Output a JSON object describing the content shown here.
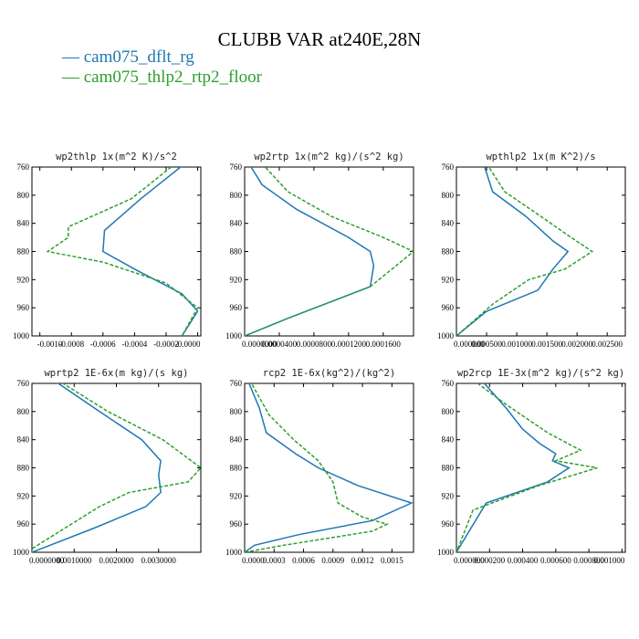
{
  "figure": {
    "title": "CLUBB VAR at240E,28N",
    "legend": [
      {
        "label": "cam075_dflt_rg",
        "color": "#1f77b4"
      },
      {
        "label": "cam075_thlp2_rtp2_floor",
        "color": "#2ca02c"
      }
    ]
  },
  "chart_data": [
    {
      "type": "line",
      "title": "wp2thlp  1x(m^2 K)/s^2",
      "ylim": [
        760,
        1000
      ],
      "y_inverted": true,
      "yticks": [
        760,
        800,
        840,
        880,
        920,
        960,
        1000
      ],
      "xlim": [
        -0.00105,
        2e-05
      ],
      "xticks": [
        -0.001,
        -0.0008,
        -0.0006,
        -0.0004,
        -0.0002,
        0.0
      ],
      "xtick_labels": [
        "-0.0010",
        "-0.0008",
        "-0.0006",
        "-0.0004",
        "-0.0002",
        "-0.0000"
      ],
      "grid": false,
      "series": [
        {
          "name": "cam075_dflt_rg",
          "color": "#1f77b4",
          "style": "solid",
          "x": [
            -8e-05,
            -0.00036,
            -0.00059,
            -0.0006,
            -0.0004,
            -0.0001,
            0.0,
            -0.0001
          ],
          "y": [
            755,
            805,
            850,
            880,
            905,
            940,
            965,
            1000
          ]
        },
        {
          "name": "cam075_thlp2_rtp2_floor",
          "color": "#2ca02c",
          "style": "dashed",
          "x": [
            -0.00014,
            -0.00042,
            -0.00082,
            -0.00082,
            -0.00095,
            -0.0006,
            -0.0002,
            0.0,
            -0.0001
          ],
          "y": [
            755,
            805,
            845,
            860,
            880,
            895,
            925,
            960,
            1000
          ]
        }
      ]
    },
    {
      "type": "line",
      "title": "wp2rtp  1x(m^2 kg)/(s^2 kg)",
      "ylim": [
        760,
        1000
      ],
      "y_inverted": true,
      "yticks": [
        760,
        800,
        840,
        880,
        920,
        960,
        1000
      ],
      "xlim": [
        0.0,
        0.000195
      ],
      "xticks": [
        0.0,
        4e-05,
        8e-05,
        0.00012,
        0.00016
      ],
      "xtick_labels": [
        "0.0000000",
        "0.0000400",
        "0.0000800",
        "0.0001200",
        "0.0001600"
      ],
      "grid": false,
      "series": [
        {
          "name": "cam075_dflt_rg",
          "color": "#1f77b4",
          "style": "solid",
          "x": [
            5e-06,
            2e-05,
            6e-05,
            0.00012,
            0.000145,
            0.000149,
            0.000145,
            5e-05,
            0.0
          ],
          "y": [
            755,
            785,
            820,
            860,
            880,
            900,
            930,
            975,
            1000
          ]
        },
        {
          "name": "cam075_thlp2_rtp2_floor",
          "color": "#2ca02c",
          "style": "dashed",
          "x": [
            2e-05,
            5e-05,
            0.0001,
            0.00016,
            0.000195,
            0.00017,
            0.000145,
            5e-05,
            0.0
          ],
          "y": [
            755,
            795,
            830,
            860,
            880,
            905,
            930,
            975,
            1000
          ]
        }
      ]
    },
    {
      "type": "line",
      "title": "wpthlp2  1x(m K^2)/s",
      "ylim": [
        760,
        1000
      ],
      "y_inverted": true,
      "yticks": [
        760,
        800,
        840,
        880,
        920,
        960,
        1000
      ],
      "xlim": [
        0.0,
        0.0028
      ],
      "xticks": [
        0.0,
        0.0005,
        0.001,
        0.0015,
        0.002,
        0.0025
      ],
      "xtick_labels": [
        "0.000000",
        "0.000500",
        "0.001000",
        "0.001500",
        "0.002000",
        "0.002500"
      ],
      "grid": false,
      "series": [
        {
          "name": "cam075_dflt_rg",
          "color": "#1f77b4",
          "style": "solid",
          "x": [
            0.00045,
            0.0006,
            0.00115,
            0.0016,
            0.00185,
            0.0016,
            0.00135,
            0.0005,
            0.0
          ],
          "y": [
            755,
            795,
            830,
            865,
            880,
            905,
            935,
            965,
            1000
          ]
        },
        {
          "name": "cam075_thlp2_rtp2_floor",
          "color": "#2ca02c",
          "style": "dashed",
          "x": [
            0.0005,
            0.0008,
            0.0014,
            0.0019,
            0.00225,
            0.0018,
            0.0012,
            0.0006,
            0.0
          ],
          "y": [
            755,
            795,
            830,
            860,
            880,
            905,
            920,
            955,
            1000
          ]
        }
      ]
    },
    {
      "type": "line",
      "title": "wprtp2  1E-6x(m kg)/(s kg)",
      "ylim": [
        760,
        1000
      ],
      "y_inverted": true,
      "yticks": [
        760,
        800,
        840,
        880,
        920,
        960,
        1000
      ],
      "xlim": [
        0.0,
        0.004
      ],
      "xticks": [
        0.0,
        0.001,
        0.002,
        0.003
      ],
      "xtick_labels": [
        "0.0000000",
        "0.0010000",
        "0.0020000",
        "0.0030000"
      ],
      "grid": false,
      "series": [
        {
          "name": "cam075_dflt_rg",
          "color": "#1f77b4",
          "style": "solid",
          "x": [
            0.0005,
            0.0016,
            0.0026,
            0.00305,
            0.003,
            0.00305,
            0.0027,
            0.0015,
            0.0
          ],
          "y": [
            755,
            800,
            840,
            870,
            890,
            915,
            935,
            965,
            1000
          ]
        },
        {
          "name": "cam075_thlp2_rtp2_floor",
          "color": "#2ca02c",
          "style": "dashed",
          "x": [
            0.0006,
            0.0018,
            0.0031,
            0.004,
            0.0037,
            0.0023,
            0.0016,
            0.0,
            0.0
          ],
          "y": [
            755,
            800,
            840,
            880,
            900,
            915,
            935,
            995,
            1000
          ]
        }
      ]
    },
    {
      "type": "line",
      "title": "rcp2  1E-6x(kg^2)/(kg^2)",
      "ylim": [
        760,
        1000
      ],
      "y_inverted": true,
      "yticks": [
        760,
        800,
        840,
        880,
        920,
        960,
        1000
      ],
      "xlim": [
        0.0,
        0.00172
      ],
      "xticks": [
        0.0,
        0.0003,
        0.0006,
        0.0009,
        0.0012,
        0.0015
      ],
      "xtick_labels": [
        "0.0000",
        "0.0003",
        "0.0006",
        "0.0009",
        "0.0012",
        "0.0015"
      ],
      "grid": false,
      "series": [
        {
          "name": "cam075_dflt_rg",
          "color": "#1f77b4",
          "style": "solid",
          "x": [
            3e-05,
            0.00015,
            0.00022,
            0.00052,
            0.00075,
            0.00115,
            0.0017,
            0.0013,
            0.00055,
            0.0001,
            0.0
          ],
          "y": [
            755,
            795,
            830,
            860,
            880,
            905,
            930,
            955,
            975,
            990,
            1000
          ]
        },
        {
          "name": "cam075_thlp2_rtp2_floor",
          "color": "#2ca02c",
          "style": "dashed",
          "x": [
            5e-05,
            0.00025,
            0.0005,
            0.00075,
            0.0009,
            0.00095,
            0.0012,
            0.00145,
            0.0013,
            0.0004,
            0.0
          ],
          "y": [
            755,
            805,
            840,
            870,
            900,
            930,
            950,
            960,
            970,
            990,
            1000
          ]
        }
      ]
    },
    {
      "type": "line",
      "title": "wp2rcp  1E-3x(m^2 kg)/(s^2 kg)",
      "ylim": [
        760,
        1000
      ],
      "y_inverted": true,
      "yticks": [
        760,
        800,
        840,
        880,
        920,
        960,
        1000
      ],
      "xlim": [
        0.0,
        0.00102
      ],
      "xticks": [
        0.0,
        0.0002,
        0.0004,
        0.0006,
        0.0008,
        0.001
      ],
      "xtick_labels": [
        "0.000000",
        "0.000200",
        "0.000400",
        "0.000600",
        "0.000800",
        "0.001000"
      ],
      "grid": false,
      "series": [
        {
          "name": "cam075_dflt_rg",
          "color": "#1f77b4",
          "style": "solid",
          "x": [
            0.00015,
            0.0003,
            0.0004,
            0.0005,
            0.0006,
            0.00058,
            0.00068,
            0.00055,
            0.00018,
            0.0
          ],
          "y": [
            755,
            795,
            825,
            845,
            860,
            870,
            880,
            900,
            930,
            1000
          ]
        },
        {
          "name": "cam075_thlp2_rtp2_floor",
          "color": "#2ca02c",
          "style": "dashed",
          "x": [
            0.0001,
            0.0003,
            0.00055,
            0.00075,
            0.0006,
            0.00085,
            0.0005,
            0.0001,
            0.0
          ],
          "y": [
            755,
            790,
            830,
            855,
            870,
            880,
            905,
            940,
            1000
          ]
        }
      ]
    }
  ]
}
